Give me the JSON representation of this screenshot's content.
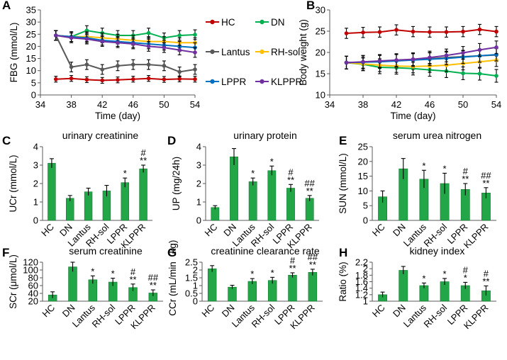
{
  "chart_data": [
    {
      "id": "A",
      "type": "line",
      "letter": "A",
      "title": "",
      "xlabel": "Time (day)",
      "ylabel": "FBG (mmol/L)",
      "xlim": [
        34,
        54
      ],
      "xticks": [
        34,
        38,
        42,
        46,
        50,
        54
      ],
      "ylim": [
        0,
        35
      ],
      "yticks": [
        0,
        5,
        10,
        15,
        20,
        25,
        30,
        35
      ],
      "x": [
        36,
        38,
        40,
        42,
        44,
        46,
        48,
        50,
        52,
        54
      ],
      "series": [
        {
          "name": "HC",
          "color": "#c00000",
          "values": [
            6.5,
            6.8,
            6.3,
            6.0,
            6.2,
            6.5,
            6.8,
            6.4,
            6.6,
            6.5
          ],
          "err": [
            1.2,
            1.2,
            1.2,
            1.2,
            1.2,
            1.2,
            1.2,
            1.2,
            1.2,
            1.2
          ]
        },
        {
          "name": "DN",
          "color": "#00b050",
          "values": [
            24.5,
            24.0,
            26.5,
            25.5,
            24.5,
            24.5,
            25.5,
            23.5,
            24.5,
            24.8
          ],
          "err": [
            2,
            2,
            2,
            2,
            2,
            2,
            2,
            2,
            2,
            2
          ]
        },
        {
          "name": "Lantus",
          "color": "#595959",
          "values": [
            24.5,
            11.5,
            12.5,
            10.5,
            12.0,
            12.5,
            12.5,
            12.0,
            9.5,
            10.5
          ],
          "err": [
            2,
            2,
            2,
            2,
            2,
            2,
            2,
            2,
            2,
            2
          ]
        },
        {
          "name": "RH-sol",
          "color": "#ffc000",
          "values": [
            24.5,
            24.0,
            24.0,
            23.5,
            23.0,
            22.5,
            22.0,
            22.0,
            21.5,
            21.5
          ],
          "err": [
            2,
            2,
            2,
            2,
            2,
            2,
            2,
            2,
            2,
            2
          ]
        },
        {
          "name": "LPPR",
          "color": "#0070c0",
          "values": [
            24.5,
            24.0,
            23.5,
            22.5,
            22.0,
            21.5,
            21.0,
            20.5,
            20.0,
            19.5
          ],
          "err": [
            2,
            2,
            2,
            2,
            2,
            2,
            2,
            2,
            2,
            2
          ]
        },
        {
          "name": "KLPPR",
          "color": "#7030a0",
          "values": [
            24.5,
            23.5,
            23.0,
            22.0,
            21.5,
            21.0,
            20.0,
            19.5,
            18.5,
            17.5
          ],
          "err": [
            2,
            2,
            2,
            2,
            2,
            2,
            2,
            2,
            2,
            2
          ]
        }
      ]
    },
    {
      "id": "B",
      "type": "line",
      "letter": "B",
      "title": "",
      "xlabel": "Time (day)",
      "ylabel": "Body weight (g)",
      "xlim": [
        34,
        54
      ],
      "xticks": [
        34,
        38,
        42,
        46,
        50,
        54
      ],
      "ylim": [
        10,
        30
      ],
      "yticks": [
        10,
        15,
        20,
        25,
        30
      ],
      "x": [
        36,
        38,
        40,
        42,
        44,
        46,
        48,
        50,
        52,
        54
      ],
      "series": [
        {
          "name": "HC",
          "color": "#c00000",
          "values": [
            24.5,
            24.7,
            24.8,
            25.3,
            24.9,
            24.8,
            24.8,
            24.9,
            25.4,
            24.9
          ],
          "err": [
            1.2,
            1.2,
            1.2,
            1.2,
            1.2,
            1.2,
            1.2,
            1.2,
            1.2,
            1.2
          ]
        },
        {
          "name": "DN",
          "color": "#00b050",
          "values": [
            17.6,
            17.2,
            16.5,
            16.4,
            16.2,
            15.9,
            15.6,
            15.1,
            15.0,
            14.5
          ],
          "err": [
            1.5,
            1.5,
            1.5,
            1.5,
            1.5,
            1.5,
            1.5,
            1.5,
            1.5,
            1.5
          ]
        },
        {
          "name": "Lantus",
          "color": "#595959",
          "values": [
            17.6,
            17.7,
            17.9,
            18.1,
            18.3,
            18.5,
            18.8,
            19.0,
            19.2,
            19.4
          ],
          "err": [
            1.5,
            1.5,
            1.5,
            1.5,
            1.5,
            1.5,
            1.5,
            1.5,
            1.5,
            1.5
          ]
        },
        {
          "name": "RH-sol",
          "color": "#ffc000",
          "values": [
            17.6,
            17.3,
            17.0,
            16.8,
            16.7,
            16.8,
            17.0,
            17.4,
            17.8,
            18.2
          ],
          "err": [
            1.5,
            1.5,
            1.5,
            1.5,
            1.5,
            1.5,
            1.5,
            1.5,
            1.5,
            1.5
          ]
        },
        {
          "name": "LPPR",
          "color": "#0070c0",
          "values": [
            17.6,
            17.7,
            17.8,
            18.0,
            18.2,
            18.4,
            18.6,
            18.9,
            19.2,
            19.5
          ],
          "err": [
            1.5,
            1.5,
            1.5,
            1.5,
            1.5,
            1.5,
            1.5,
            1.5,
            1.5,
            1.5
          ]
        },
        {
          "name": "KLPPR",
          "color": "#7030a0",
          "values": [
            17.6,
            17.8,
            18.0,
            18.2,
            18.4,
            18.8,
            19.3,
            19.9,
            20.6,
            21.2
          ],
          "err": [
            1.5,
            1.5,
            1.5,
            1.5,
            1.5,
            1.5,
            1.5,
            1.5,
            1.5,
            1.5
          ]
        }
      ]
    },
    {
      "id": "C",
      "type": "bar",
      "letter": "C",
      "title": "urinary creatinine",
      "ylabel": "UCr (mmol/L)",
      "ylim": [
        0,
        4
      ],
      "yticks": [
        0,
        1,
        2,
        3,
        4
      ],
      "categories": [
        "HC",
        "DN",
        "Lantus",
        "RH-sol",
        "LPPR",
        "KLPPR"
      ],
      "values": [
        3.1,
        1.2,
        1.55,
        1.6,
        2.05,
        2.8
      ],
      "err": [
        0.25,
        0.15,
        0.2,
        0.3,
        0.25,
        0.2
      ],
      "marks": [
        "",
        "",
        "",
        "",
        "*",
        "#\n**"
      ]
    },
    {
      "id": "D",
      "type": "bar",
      "letter": "D",
      "title": "urinary protein",
      "ylabel": "UP (mg/24h)",
      "ylim": [
        0,
        4
      ],
      "yticks": [
        0,
        1,
        2,
        3,
        4
      ],
      "categories": [
        "HC",
        "DN",
        "Lantus",
        "RH-sol",
        "LPPR",
        "KLPPR"
      ],
      "values": [
        0.7,
        3.45,
        2.1,
        2.7,
        1.75,
        1.2
      ],
      "err": [
        0.1,
        0.45,
        0.2,
        0.25,
        0.2,
        0.15
      ],
      "marks": [
        "",
        "",
        "*",
        "*",
        "#\n**",
        "##\n**"
      ]
    },
    {
      "id": "E",
      "type": "bar",
      "letter": "E",
      "title": "serum urea nitrogen",
      "ylabel": "SUN (mmol/L)",
      "ylim": [
        0,
        25
      ],
      "yticks": [
        0,
        5,
        10,
        15,
        20,
        25
      ],
      "categories": [
        "HC",
        "DN",
        "Lantus",
        "RH-sol",
        "LPPR",
        "KLPPR"
      ],
      "values": [
        8.0,
        17.5,
        14.0,
        12.5,
        10.5,
        9.3
      ],
      "err": [
        2.0,
        3.5,
        3.0,
        3.5,
        2.0,
        1.8
      ],
      "marks": [
        "",
        "",
        "*",
        "*",
        "#\n**",
        "##\n**"
      ]
    },
    {
      "id": "F",
      "type": "bar",
      "letter": "F",
      "title": "serum creatinine",
      "ylabel": "SCr (μmol/L)",
      "ylim": [
        20,
        120
      ],
      "yticks": [
        20,
        40,
        60,
        80,
        100,
        120
      ],
      "categories": [
        "HC",
        "DN",
        "Lantus",
        "RH-sol",
        "LPPR",
        "KLPPR"
      ],
      "values": [
        36,
        108,
        75,
        69,
        55,
        41
      ],
      "err": [
        8,
        12,
        10,
        10,
        9,
        8
      ],
      "marks": [
        "",
        "",
        "*",
        "*",
        "#\n**",
        "##\n**"
      ]
    },
    {
      "id": "G",
      "type": "bar",
      "letter": "G",
      "title": "creatinine clearance rate",
      "ylabel": "CCr (mL/min·kg)",
      "ylabel2": "kg)",
      "ylabel1": "CCr (mL/min",
      "ylim": [
        0,
        2.5
      ],
      "yticks": [
        0,
        0.5,
        1,
        1.5,
        2,
        2.5
      ],
      "categories": [
        "HC",
        "DN",
        "Lantus",
        "RH-sol",
        "LPPR",
        "KLPPR"
      ],
      "values": [
        2.08,
        0.9,
        1.27,
        1.33,
        1.67,
        1.85
      ],
      "err": [
        0.2,
        0.12,
        0.18,
        0.2,
        0.15,
        0.2
      ],
      "marks": [
        "",
        "",
        "*",
        "*",
        "#\n**",
        "##\n**"
      ]
    },
    {
      "id": "H",
      "type": "bar",
      "letter": "H",
      "title": "kidney index",
      "ylabel": "Ratio (%)",
      "ylim": [
        1,
        2.2
      ],
      "yticks": [
        1,
        1.2,
        1.4,
        1.6,
        1.8,
        2,
        2.2
      ],
      "categories": [
        "HC",
        "DN",
        "Lantus",
        "RH-sol",
        "LPPR",
        "KLPPR"
      ],
      "values": [
        1.2,
        1.95,
        1.48,
        1.6,
        1.48,
        1.32
      ],
      "err": [
        0.08,
        0.12,
        0.08,
        0.1,
        0.1,
        0.15
      ],
      "marks": [
        "",
        "",
        "*",
        "*",
        "#\n*",
        "#\n**"
      ]
    }
  ],
  "colors": {
    "bar": "#22a648",
    "bar_edge": "#157a30",
    "axis": "#595959"
  }
}
